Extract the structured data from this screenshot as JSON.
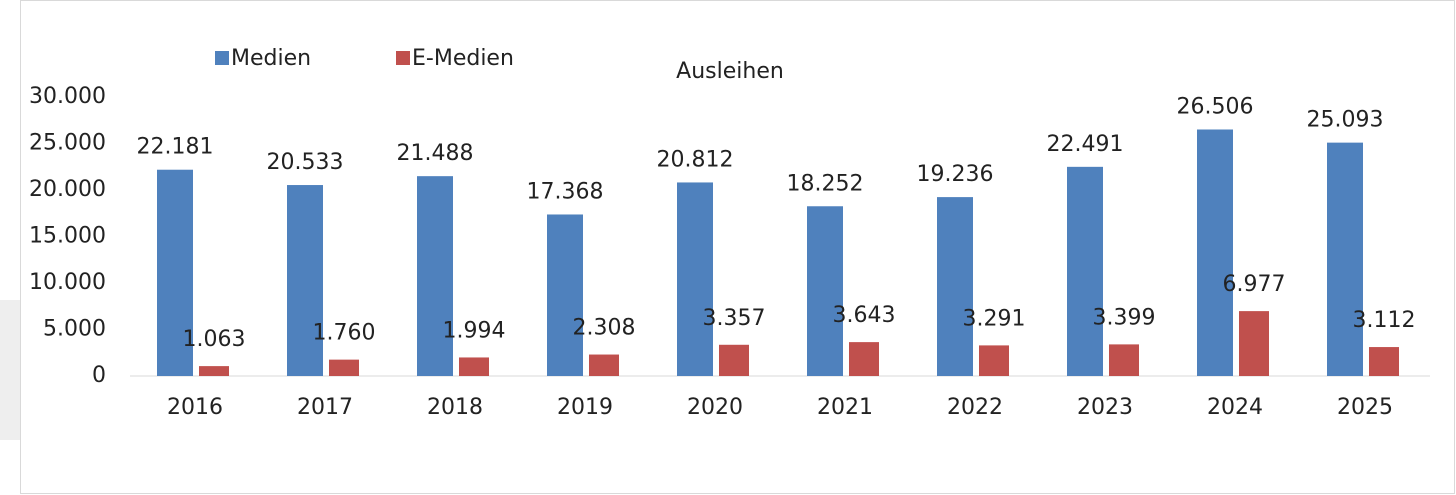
{
  "chart_data": {
    "type": "bar",
    "title": "Ausleihen",
    "categories": [
      "2016",
      "2017",
      "2018",
      "2019",
      "2020",
      "2021",
      "2022",
      "2023",
      "2024",
      "2025"
    ],
    "series": [
      {
        "name": "Medien",
        "color": "#4f81bd",
        "values": [
          22181,
          20533,
          21488,
          17368,
          20812,
          18252,
          19236,
          22491,
          26506,
          25093
        ],
        "value_labels": [
          "22.181",
          "20.533",
          "21.488",
          "17.368",
          "20.812",
          "18.252",
          "19.236",
          "22.491",
          "26.506",
          "25.093"
        ]
      },
      {
        "name": "E-Medien",
        "color": "#c0504d",
        "values": [
          1063,
          1760,
          1994,
          2308,
          3357,
          3643,
          3291,
          3399,
          6977,
          3112
        ],
        "value_labels": [
          "1.063",
          "1.760",
          "1.994",
          "2.308",
          "3.357",
          "3.643",
          "3.291",
          "3.399",
          "6.977",
          "3.112"
        ]
      }
    ],
    "ylim": [
      0,
      30000
    ],
    "yticks": [
      0,
      {
        "value": 5000,
        "label": "5.000"
      },
      {
        "value": 10000,
        "label": "10.000"
      },
      {
        "value": 15000,
        "label": "15.000"
      },
      {
        "value": 20000,
        "label": "20.000"
      },
      {
        "value": 25000,
        "label": "25.000"
      },
      {
        "value": 30000,
        "label": "30.000"
      }
    ],
    "grid": false,
    "legend": "top"
  }
}
